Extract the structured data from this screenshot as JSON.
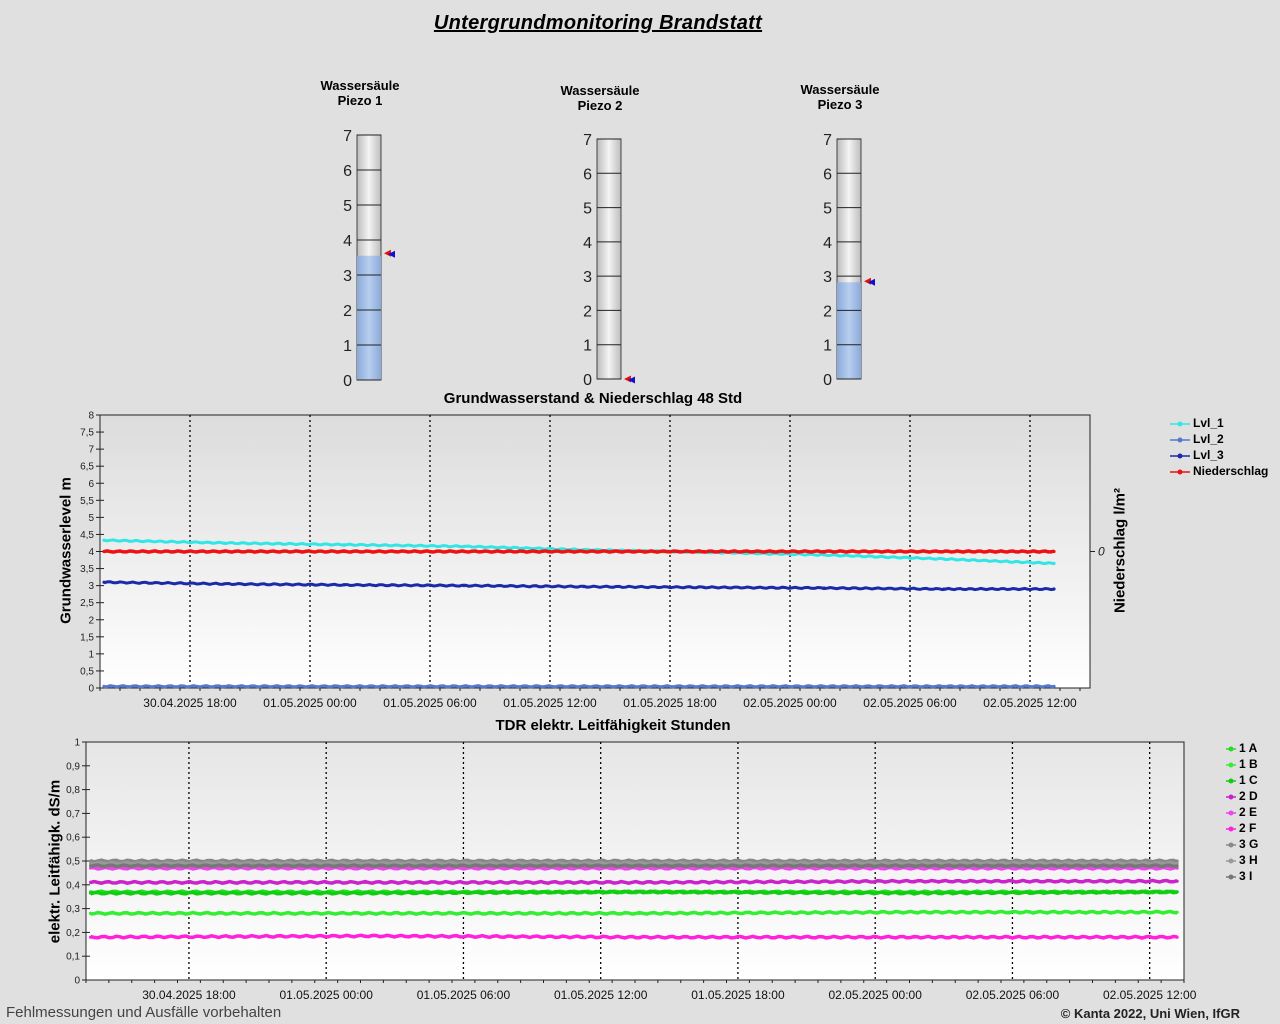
{
  "page": {
    "title": "Untergrundmonitoring Brandstatt",
    "footer_left": "Fehlmessungen und Ausfälle vorbehalten",
    "footer_right": "© Kanta 2022, Uni Wien, IfGR"
  },
  "gauges": [
    {
      "title_line1": "Wassersäule",
      "title_line2": "Piezo 1",
      "value": 3.55,
      "marker": 3.62,
      "min": 0,
      "max": 7
    },
    {
      "title_line1": "Wassersäule",
      "title_line2": "Piezo 2",
      "value": 0.0,
      "marker": 0.0,
      "min": 0,
      "max": 7
    },
    {
      "title_line1": "Wassersäule",
      "title_line2": "Piezo 3",
      "value": 2.82,
      "marker": 2.85,
      "min": 0,
      "max": 7
    }
  ],
  "gauge_ticks": [
    "0",
    "1",
    "2",
    "3",
    "4",
    "5",
    "6",
    "7"
  ],
  "chart_data": [
    {
      "type": "line",
      "title": "Grundwasserstand & Niederschlag 48 Std",
      "ylabel": "Grundwasserlevel m",
      "y2label": "Niederschlag l/m²",
      "y2_tick": "0",
      "ylim": [
        0,
        8
      ],
      "yticks": [
        "0",
        "0,5",
        "1",
        "1,5",
        "2",
        "2,5",
        "3",
        "3,5",
        "4",
        "4,5",
        "5",
        "5,5",
        "6",
        "6,5",
        "7",
        "7,5",
        "8"
      ],
      "x_range": [
        "30.04.2025 13:30",
        "02.05.2025 15:00"
      ],
      "xticks": [
        "30.04.2025 18:00",
        "01.05.2025 00:00",
        "01.05.2025 06:00",
        "01.05.2025 12:00",
        "01.05.2025 18:00",
        "02.05.2025 00:00",
        "02.05.2025 06:00",
        "02.05.2025 12:00"
      ],
      "grid": true,
      "legend_position": "right",
      "x_hours": [
        0,
        6,
        12,
        18,
        24,
        30,
        36,
        42,
        47.5
      ],
      "series": [
        {
          "name": "Lvl_1",
          "color": "#33e6e6",
          "values": [
            4.33,
            4.25,
            4.2,
            4.15,
            4.05,
            3.98,
            3.9,
            3.78,
            3.65
          ]
        },
        {
          "name": "Lvl_2",
          "color": "#5577cc",
          "values": [
            0.05,
            0.05,
            0.05,
            0.05,
            0.05,
            0.05,
            0.05,
            0.05,
            0.05
          ]
        },
        {
          "name": "Lvl_3",
          "color": "#1a2aa8",
          "values": [
            3.1,
            3.05,
            3.02,
            3.0,
            2.97,
            2.95,
            2.93,
            2.9,
            2.9
          ]
        },
        {
          "name": "Niederschlag",
          "color": "#ee1111",
          "values": [
            4.0,
            4.0,
            4.0,
            4.0,
            4.0,
            4.0,
            4.0,
            4.0,
            4.0
          ]
        }
      ]
    },
    {
      "type": "line",
      "title": "TDR elektr. Leitfähigkeit Stunden",
      "ylabel": "elektr. Leitfähigk. dS/m",
      "ylim": [
        0,
        1
      ],
      "yticks": [
        "0",
        "0,1",
        "0,2",
        "0,3",
        "0,4",
        "0,5",
        "0,6",
        "0,7",
        "0,8",
        "0,9",
        "1"
      ],
      "x_range": [
        "30.04.2025 13:30",
        "02.05.2025 15:00"
      ],
      "xticks": [
        "30.04.2025 18:00",
        "01.05.2025 00:00",
        "01.05.2025 06:00",
        "01.05.2025 12:00",
        "01.05.2025 18:00",
        "02.05.2025 00:00",
        "02.05.2025 06:00",
        "02.05.2025 12:00"
      ],
      "grid": true,
      "legend_position": "right",
      "x_hours": [
        0,
        12,
        24,
        36,
        47.5
      ],
      "series": [
        {
          "name": "1 A",
          "color": "#22dd22",
          "values": [
            0.37,
            0.37,
            0.37,
            0.37,
            0.37
          ]
        },
        {
          "name": "1 B",
          "color": "#33ee33",
          "values": [
            0.28,
            0.28,
            0.28,
            0.285,
            0.285
          ]
        },
        {
          "name": "1 C",
          "color": "#11cc11",
          "values": [
            0.365,
            0.365,
            0.37,
            0.365,
            0.37
          ]
        },
        {
          "name": "2 D",
          "color": "#cc22cc",
          "values": [
            0.41,
            0.41,
            0.41,
            0.415,
            0.415
          ]
        },
        {
          "name": "2 E",
          "color": "#ee44ee",
          "values": [
            0.47,
            0.47,
            0.47,
            0.47,
            0.47
          ]
        },
        {
          "name": "2 F",
          "color": "#ff22dd",
          "values": [
            0.18,
            0.185,
            0.18,
            0.18,
            0.18
          ]
        },
        {
          "name": "3 G",
          "color": "#888888",
          "values": [
            0.5,
            0.5,
            0.5,
            0.5,
            0.5
          ]
        },
        {
          "name": "3 H",
          "color": "#999999",
          "values": [
            0.49,
            0.49,
            0.49,
            0.49,
            0.49
          ]
        },
        {
          "name": "3 I",
          "color": "#777777",
          "values": [
            0.48,
            0.48,
            0.48,
            0.48,
            0.48
          ]
        }
      ]
    }
  ]
}
